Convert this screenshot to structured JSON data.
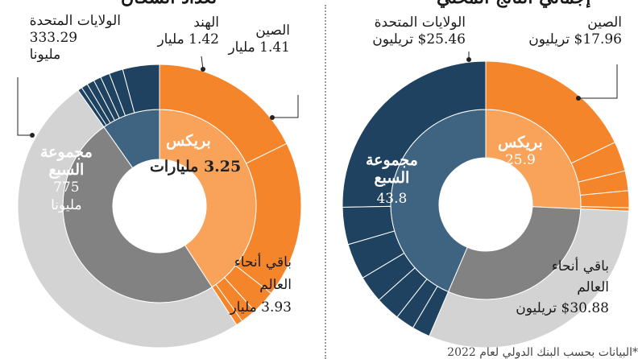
{
  "left": {
    "title": "تعداد السكان",
    "labels": {
      "us": {
        "name": "الولايات المتحدة",
        "value": "333.29",
        "unit": "مليونا"
      },
      "india": {
        "name": "الهند",
        "value": "1.42 مليار"
      },
      "china": {
        "name": "الصين",
        "value": "1.41 مليار"
      },
      "g7": {
        "name1": "مجموعة",
        "name2": "السبع",
        "value": "775",
        "unit": "مليونا"
      },
      "brics": {
        "name": "بريكس",
        "value": "3.25 مليارات"
      },
      "rest": {
        "name1": "باقي أنحاء",
        "name2": "العالم",
        "value": "3.93 مليار"
      }
    }
  },
  "right": {
    "title": "إجمالي الناتج المحلي",
    "labels": {
      "us": {
        "name": "الولايات المتحدة",
        "value": "$25.46 تريليون"
      },
      "china": {
        "name": "الصين",
        "value": "$17.96 تريليون"
      },
      "g7": {
        "name1": "مجموعة",
        "name2": "السبع",
        "value": "43.8"
      },
      "brics": {
        "name": "بريكس",
        "value": "25.9"
      },
      "rest": {
        "name1": "باقي أنحاء",
        "name2": "العالم",
        "value": "$30.88 تريليون"
      }
    }
  },
  "footnote": "*البيانات بحسب البنك الدولي لعام 2022",
  "colors": {
    "brics_outer": "#f5852a",
    "brics_inner": "#f9a35a",
    "g7_outer": "#1e4260",
    "g7_inner": "#3f6482",
    "rest_outer": "#d3d3d3",
    "rest_inner": "#828282"
  },
  "chart_data": [
    {
      "type": "pie",
      "title": "تعداد السكان",
      "unit": "مليار نسمة",
      "inner_ring": [
        {
          "name": "بريكس",
          "value": 3.25
        },
        {
          "name": "مجموعة السبع",
          "value": 0.775
        },
        {
          "name": "باقي أنحاء العالم",
          "value": 3.93
        }
      ],
      "outer_ring": {
        "brics_members": [
          {
            "name": "الصين",
            "value": 1.41
          },
          {
            "name": "الهند",
            "value": 1.42
          },
          {
            "name": "",
            "value": 0.215
          },
          {
            "name": "",
            "value": 0.144
          },
          {
            "name": "",
            "value": 0.06
          }
        ],
        "g7_members": [
          {
            "name": "الولايات المتحدة",
            "value": 0.33329
          },
          {
            "name": "",
            "value": 0.125
          },
          {
            "name": "",
            "value": 0.084
          },
          {
            "name": "",
            "value": 0.068
          },
          {
            "name": "",
            "value": 0.067
          },
          {
            "name": "",
            "value": 0.059
          },
          {
            "name": "",
            "value": 0.039
          }
        ],
        "rest": {
          "name": "باقي أنحاء العالم",
          "value": 3.93
        }
      }
    },
    {
      "type": "pie",
      "title": "إجمالي الناتج المحلي",
      "unit": "تريليون دولار",
      "inner_ring": [
        {
          "name": "بريكس",
          "value": 25.9
        },
        {
          "name": "مجموعة السبع",
          "value": 43.8
        },
        {
          "name": "باقي أنحاء العالم",
          "value": 30.88
        }
      ],
      "outer_ring": {
        "brics_members": [
          {
            "name": "الصين",
            "value": 17.96
          },
          {
            "name": "",
            "value": 3.39
          },
          {
            "name": "",
            "value": 2.24
          },
          {
            "name": "",
            "value": 1.92
          },
          {
            "name": "",
            "value": 0.41
          }
        ],
        "g7_members": [
          {
            "name": "الولايات المتحدة",
            "value": 25.46
          },
          {
            "name": "",
            "value": 4.23
          },
          {
            "name": "",
            "value": 4.08
          },
          {
            "name": "",
            "value": 3.07
          },
          {
            "name": "",
            "value": 2.78
          },
          {
            "name": "",
            "value": 2.14
          },
          {
            "name": "",
            "value": 2.04
          }
        ],
        "rest": {
          "name": "باقي أنحاء العالم",
          "value": 30.88
        }
      }
    }
  ]
}
